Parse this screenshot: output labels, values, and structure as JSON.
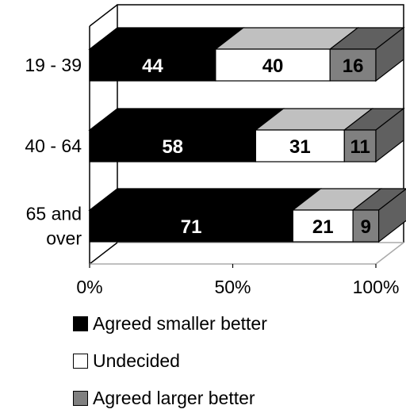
{
  "chart_data": {
    "type": "bar",
    "stacked": true,
    "orientation": "horizontal",
    "categories": [
      "19 - 39",
      "40 - 64",
      "65 and over"
    ],
    "category_lines": [
      [
        "19 - 39"
      ],
      [
        "40 - 64"
      ],
      [
        "65 and",
        "over"
      ]
    ],
    "series": [
      {
        "name": "Agreed smaller better",
        "values": [
          44,
          58,
          71
        ],
        "color": "#000000",
        "top_color": "#000000",
        "side_color": "#000000",
        "label_color": "#ffffff"
      },
      {
        "name": "Undecided",
        "values": [
          40,
          31,
          21
        ],
        "color": "#ffffff",
        "top_color": "#c0c0c0",
        "side_color": "#c0c0c0",
        "label_color": "#000000"
      },
      {
        "name": "Agreed larger better",
        "values": [
          16,
          11,
          9
        ],
        "color": "#808080",
        "top_color": "#606060",
        "side_color": "#606060",
        "label_color": "#000000"
      }
    ],
    "xaxis": {
      "ticks": [
        "0%",
        "50%",
        "100%"
      ],
      "range": [
        0,
        100
      ]
    },
    "legend_position": "bottom",
    "grid": false
  },
  "legend": [
    {
      "label": "Agreed smaller better",
      "color": "#000000"
    },
    {
      "label": "Undecided",
      "color": "#ffffff"
    },
    {
      "label": "Agreed larger better",
      "color": "#808080"
    }
  ]
}
